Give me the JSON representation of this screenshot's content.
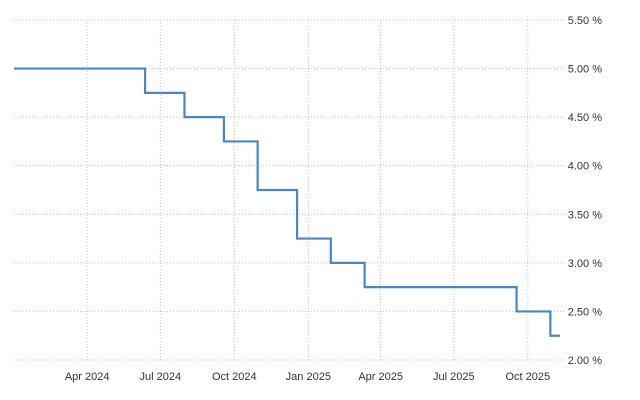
{
  "chart_data": {
    "type": "line",
    "step": true,
    "grid": true,
    "title": "",
    "xlabel": "",
    "ylabel": "",
    "x_ticks": [
      {
        "date": "2024-04-01",
        "label": "Apr 2024"
      },
      {
        "date": "2024-07-01",
        "label": "Jul 2024"
      },
      {
        "date": "2024-10-01",
        "label": "Oct 2024"
      },
      {
        "date": "2025-01-01",
        "label": "Jan 2025"
      },
      {
        "date": "2025-04-01",
        "label": "Apr 2025"
      },
      {
        "date": "2025-07-01",
        "label": "Jul 2025"
      },
      {
        "date": "2025-10-01",
        "label": "Oct 2025"
      }
    ],
    "y_ticks": [
      {
        "value": 2.0,
        "label": "2.00 %"
      },
      {
        "value": 2.5,
        "label": "2.50 %"
      },
      {
        "value": 3.0,
        "label": "3.00 %"
      },
      {
        "value": 3.5,
        "label": "3.50 %"
      },
      {
        "value": 4.0,
        "label": "4.00 %"
      },
      {
        "value": 4.5,
        "label": "4.50 %"
      },
      {
        "value": 5.0,
        "label": "5.00 %"
      },
      {
        "value": 5.5,
        "label": "5.50 %"
      }
    ],
    "xlim": [
      "2024-01-01",
      "2025-11-10"
    ],
    "ylim": [
      2.0,
      5.5
    ],
    "series": [
      {
        "color": "#4a86c0",
        "points": [
          {
            "x": "2024-01-01",
            "y": 5.0
          },
          {
            "x": "2024-06-12",
            "y": 4.75
          },
          {
            "x": "2024-07-31",
            "y": 4.5
          },
          {
            "x": "2024-09-18",
            "y": 4.25
          },
          {
            "x": "2024-10-30",
            "y": 3.75
          },
          {
            "x": "2024-12-18",
            "y": 3.25
          },
          {
            "x": "2025-01-29",
            "y": 3.0
          },
          {
            "x": "2025-03-12",
            "y": 2.75
          },
          {
            "x": "2025-09-17",
            "y": 2.5
          },
          {
            "x": "2025-10-29",
            "y": 2.25
          },
          {
            "x": "2025-11-10",
            "y": 2.25
          }
        ]
      }
    ]
  }
}
